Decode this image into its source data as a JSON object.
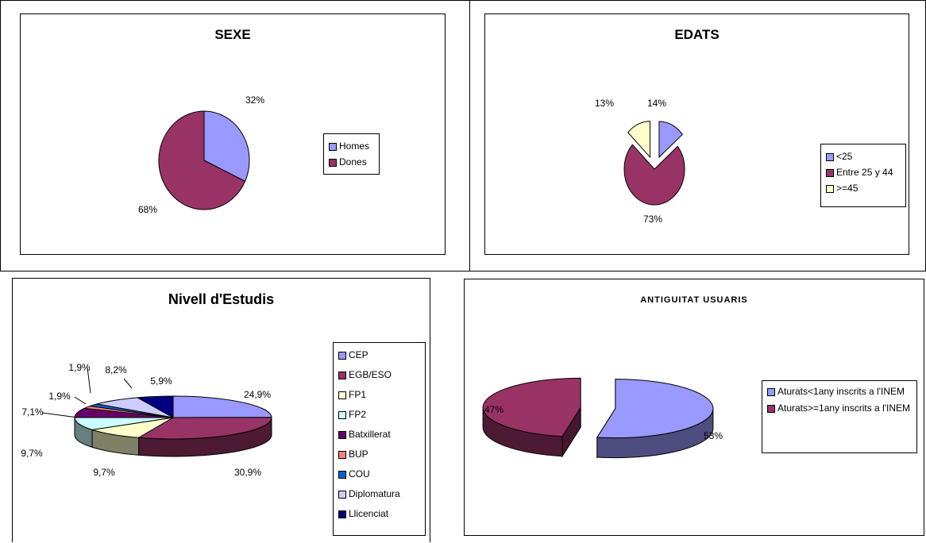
{
  "chart_data": [
    {
      "type": "pie",
      "title": "SEXE",
      "categories": [
        "Homes",
        "Dones"
      ],
      "values": [
        32,
        68
      ],
      "data_labels": [
        "32%",
        "68%"
      ],
      "colors": [
        "#9999ff",
        "#993366"
      ],
      "legend": "right"
    },
    {
      "type": "pie",
      "title": "EDATS",
      "categories": [
        "<25",
        "Entre 25 y 44",
        ">=45"
      ],
      "values": [
        14,
        73,
        13
      ],
      "data_labels": [
        "14%",
        "73%",
        "13%"
      ],
      "colors": [
        "#9999ff",
        "#993366",
        "#ffffcc"
      ],
      "exploded": true,
      "legend": "right"
    },
    {
      "type": "pie",
      "title": "Nivell d'Estudis",
      "categories": [
        "CEP",
        "EGB/ESO",
        "FP1",
        "FP2",
        "Batxillerat",
        "BUP",
        "COU",
        "Diplomatura",
        "Llicenciat"
      ],
      "values": [
        24.9,
        30.9,
        9.7,
        9.7,
        7.1,
        1.9,
        1.9,
        8.2,
        5.9
      ],
      "data_labels": [
        "24,9%",
        "30,9%",
        "9,7%",
        "9,7%",
        "7,1%",
        "1,9%",
        "1,9%",
        "8,2%",
        "5,9%"
      ],
      "colors": [
        "#9999ff",
        "#993366",
        "#ffffcc",
        "#ccffff",
        "#660066",
        "#ff8080",
        "#0066cc",
        "#ccccff",
        "#000080"
      ],
      "style": "3d",
      "legend": "right"
    },
    {
      "type": "pie",
      "title": "ANTIGUITAT USUARIS",
      "categories": [
        "Aturats<1any inscrits a l'INEM",
        "Aturats>=1any inscrits a l'INEM"
      ],
      "values": [
        53,
        47
      ],
      "data_labels": [
        "53%",
        "47%"
      ],
      "colors": [
        "#9999ff",
        "#993366"
      ],
      "style": "3d",
      "exploded": true,
      "legend": "right"
    }
  ]
}
